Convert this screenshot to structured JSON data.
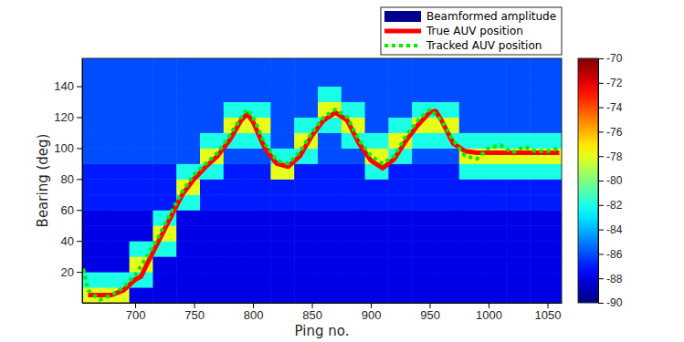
{
  "chart_data": {
    "type": "line",
    "x_label": "Ping no.",
    "y_label": "Bearing (deg)",
    "xlim": [
      655,
      1062
    ],
    "xticks": [
      700,
      750,
      800,
      850,
      900,
      950,
      1000,
      1050
    ],
    "ylim": [
      0,
      158
    ],
    "yticks": [
      20,
      40,
      60,
      80,
      100,
      120,
      140
    ],
    "grid": false,
    "legend": "northeast",
    "heatmap": {
      "name": "Beamformed amplitude",
      "color": "#00008f",
      "x": [
        665,
        685,
        705,
        725,
        745,
        765,
        785,
        805,
        825,
        845,
        865,
        885,
        905,
        925,
        945,
        965,
        985,
        1005,
        1025,
        1045,
        1065
      ],
      "y": [
        5,
        15,
        25,
        35,
        45,
        55,
        65,
        75,
        85,
        95,
        105,
        115,
        125,
        135,
        145,
        155
      ],
      "values": [
        [
          -78,
          -78,
          -88,
          -88,
          -88,
          -88,
          -88,
          -88,
          -88,
          -88,
          -88,
          -88,
          -88,
          -88,
          -88,
          -88,
          -88,
          -88,
          -88,
          -88,
          -88
        ],
        [
          -82,
          -82,
          -82,
          -88,
          -88,
          -88,
          -88,
          -88,
          -88,
          -88,
          -88,
          -88,
          -88,
          -88,
          -88,
          -88,
          -88,
          -88,
          -88,
          -88,
          -88
        ],
        [
          -88,
          -88,
          -78,
          -88,
          -88,
          -88,
          -88,
          -88,
          -88,
          -88,
          -88,
          -88,
          -88,
          -88,
          -88,
          -88,
          -88,
          -88,
          -88,
          -88,
          -88
        ],
        [
          -88,
          -88,
          -82,
          -82,
          -88,
          -88,
          -88,
          -88,
          -88,
          -88,
          -88,
          -88,
          -88,
          -88,
          -88,
          -88,
          -88,
          -88,
          -88,
          -88,
          -88
        ],
        [
          -88,
          -88,
          -88,
          -78,
          -88,
          -88,
          -88,
          -88,
          -88,
          -88,
          -88,
          -88,
          -88,
          -88,
          -88,
          -88,
          -88,
          -88,
          -88,
          -88,
          -88
        ],
        [
          -88,
          -88,
          -88,
          -82,
          -88,
          -88,
          -88,
          -88,
          -88,
          -88,
          -88,
          -88,
          -88,
          -88,
          -88,
          -88,
          -88,
          -88,
          -88,
          -88,
          -88
        ],
        [
          -87,
          -87,
          -87,
          -87,
          -82,
          -87,
          -87,
          -87,
          -87,
          -87,
          -87,
          -87,
          -87,
          -87,
          -87,
          -87,
          -87,
          -87,
          -87,
          -87,
          -87
        ],
        [
          -87,
          -87,
          -87,
          -87,
          -78,
          -87,
          -87,
          -87,
          -87,
          -87,
          -87,
          -87,
          -87,
          -87,
          -87,
          -87,
          -87,
          -87,
          -87,
          -87,
          -87
        ],
        [
          -87,
          -87,
          -87,
          -87,
          -82,
          -82,
          -87,
          -87,
          -78,
          -87,
          -87,
          -87,
          -82,
          -87,
          -87,
          -87,
          -82,
          -82,
          -82,
          -82,
          -82
        ],
        [
          -86,
          -86,
          -86,
          -86,
          -86,
          -78,
          -86,
          -86,
          -82,
          -82,
          -86,
          -86,
          -78,
          -82,
          -86,
          -86,
          -78,
          -78,
          -78,
          -78,
          -78
        ],
        [
          -86,
          -86,
          -86,
          -86,
          -86,
          -82,
          -82,
          -82,
          -86,
          -78,
          -86,
          -82,
          -82,
          -78,
          -82,
          -82,
          -82,
          -82,
          -82,
          -82,
          -82
        ],
        [
          -86,
          -86,
          -86,
          -86,
          -86,
          -86,
          -78,
          -78,
          -86,
          -82,
          -82,
          -78,
          -86,
          -82,
          -78,
          -78,
          -86,
          -86,
          -86,
          -86,
          -86
        ],
        [
          -86,
          -86,
          -86,
          -86,
          -86,
          -86,
          -82,
          -82,
          -86,
          -86,
          -78,
          -82,
          -86,
          -86,
          -82,
          -82,
          -86,
          -86,
          -86,
          -86,
          -86
        ],
        [
          -86,
          -86,
          -86,
          -86,
          -86,
          -86,
          -86,
          -86,
          -86,
          -86,
          -82,
          -86,
          -86,
          -86,
          -86,
          -86,
          -86,
          -86,
          -86,
          -86,
          -86
        ],
        [
          -86,
          -86,
          -86,
          -86,
          -86,
          -86,
          -86,
          -86,
          -86,
          -86,
          -86,
          -86,
          -86,
          -86,
          -86,
          -86,
          -86,
          -86,
          -86,
          -86,
          -86
        ],
        [
          -86,
          -86,
          -86,
          -86,
          -86,
          -86,
          -86,
          -86,
          -86,
          -86,
          -86,
          -86,
          -86,
          -86,
          -86,
          -86,
          -86,
          -86,
          -86,
          -86,
          -86
        ]
      ],
      "colorbar": {
        "range": [
          -90,
          -70
        ],
        "ticks": [
          -90,
          -88,
          -86,
          -84,
          -82,
          -80,
          -78,
          -76,
          -74,
          -72,
          -70
        ]
      }
    },
    "series": [
      {
        "name": "True AUV position",
        "color": "#ff0000",
        "line_style": "solid",
        "x": [
          660,
          670,
          680,
          690,
          700,
          705,
          710,
          720,
          730,
          740,
          750,
          760,
          770,
          780,
          790,
          795,
          800,
          810,
          820,
          830,
          840,
          850,
          860,
          870,
          880,
          890,
          900,
          910,
          920,
          930,
          940,
          950,
          955,
          960,
          970,
          980,
          990,
          1000,
          1010,
          1020,
          1030,
          1040,
          1050,
          1060
        ],
        "values": [
          5,
          5,
          5,
          8,
          15,
          17,
          25,
          40,
          55,
          70,
          80,
          88,
          95,
          105,
          118,
          122,
          117,
          100,
          90,
          88,
          95,
          108,
          118,
          123,
          118,
          103,
          92,
          87,
          93,
          105,
          115,
          123,
          124,
          118,
          103,
          98,
          97,
          97,
          97,
          97,
          97,
          97,
          97,
          97
        ]
      },
      {
        "name": "Tracked AUV position",
        "color": "#00ee00",
        "line_style": "dotted",
        "x": [
          656,
          660,
          670,
          680,
          690,
          700,
          710,
          720,
          730,
          740,
          750,
          760,
          770,
          780,
          790,
          795,
          800,
          810,
          820,
          830,
          840,
          850,
          860,
          870,
          880,
          890,
          900,
          910,
          920,
          930,
          940,
          950,
          960,
          970,
          980,
          990,
          1000,
          1010,
          1020,
          1030,
          1040,
          1050,
          1060
        ],
        "values": [
          22,
          8,
          2,
          5,
          10,
          18,
          30,
          43,
          58,
          72,
          83,
          90,
          97,
          108,
          120,
          125,
          120,
          103,
          92,
          90,
          98,
          110,
          120,
          125,
          120,
          105,
          95,
          90,
          95,
          108,
          118,
          125,
          118,
          105,
          95,
          93,
          100,
          102,
          97,
          101,
          98,
          98,
          100
        ]
      }
    ]
  }
}
